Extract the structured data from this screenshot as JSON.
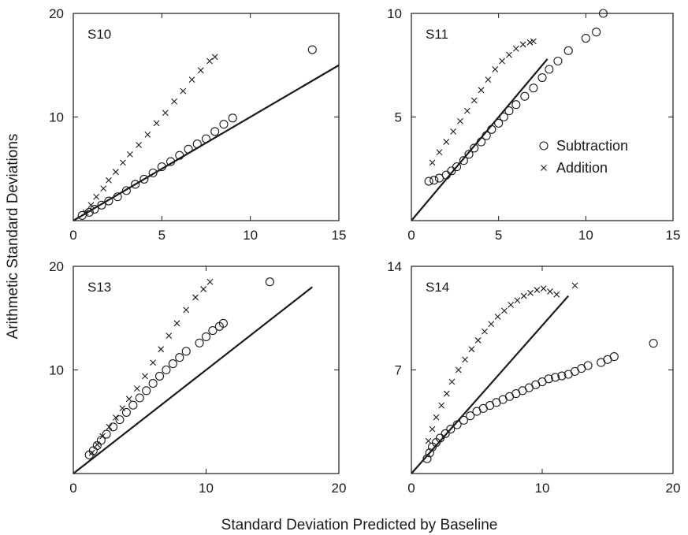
{
  "chart_data": {
    "type": "scatter",
    "xlabel": "Standard Deviation Predicted by Baseline",
    "ylabel": "Arithmetic Standard Deviations",
    "legend": {
      "placement": "inside panel S11, right",
      "series": [
        "Subtraction",
        "Addition"
      ]
    },
    "panels": [
      {
        "title": "S10",
        "xlim": [
          0,
          15
        ],
        "ylim": [
          0,
          20
        ],
        "xticks": [
          0,
          5,
          10,
          15
        ],
        "yticks": [
          0,
          10,
          20
        ],
        "xtick_labels": [
          "0",
          "5",
          "10",
          "15"
        ],
        "ytick_labels": [
          "0",
          "10",
          "20"
        ],
        "reference_line": [
          [
            0,
            0
          ],
          [
            15,
            15
          ]
        ],
        "series": [
          {
            "name": "Subtraction",
            "marker": "circle",
            "points": [
              [
                0.5,
                0.5
              ],
              [
                0.9,
                0.8
              ],
              [
                1.2,
                1.1
              ],
              [
                1.6,
                1.5
              ],
              [
                2.0,
                1.9
              ],
              [
                2.5,
                2.3
              ],
              [
                3.0,
                2.9
              ],
              [
                3.5,
                3.5
              ],
              [
                4.0,
                4.0
              ],
              [
                4.5,
                4.6
              ],
              [
                5.0,
                5.2
              ],
              [
                5.5,
                5.7
              ],
              [
                6.0,
                6.3
              ],
              [
                6.5,
                6.9
              ],
              [
                7.0,
                7.4
              ],
              [
                7.5,
                7.9
              ],
              [
                8.0,
                8.6
              ],
              [
                8.5,
                9.3
              ],
              [
                9.0,
                9.9
              ],
              [
                13.5,
                16.5
              ]
            ]
          },
          {
            "name": "Addition",
            "marker": "cross",
            "points": [
              [
                0.7,
                0.8
              ],
              [
                1.0,
                1.5
              ],
              [
                1.3,
                2.3
              ],
              [
                1.7,
                3.1
              ],
              [
                2.0,
                3.9
              ],
              [
                2.4,
                4.7
              ],
              [
                2.8,
                5.6
              ],
              [
                3.2,
                6.4
              ],
              [
                3.7,
                7.3
              ],
              [
                4.2,
                8.3
              ],
              [
                4.7,
                9.4
              ],
              [
                5.2,
                10.4
              ],
              [
                5.7,
                11.5
              ],
              [
                6.2,
                12.5
              ],
              [
                6.7,
                13.6
              ],
              [
                7.2,
                14.5
              ],
              [
                7.7,
                15.4
              ],
              [
                8.0,
                15.8
              ]
            ]
          }
        ]
      },
      {
        "title": "S11",
        "xlim": [
          0,
          15
        ],
        "ylim": [
          0,
          10
        ],
        "xticks": [
          0,
          5,
          10,
          15
        ],
        "yticks": [
          0,
          5,
          10
        ],
        "xtick_labels": [
          "0",
          "5",
          "10",
          "15"
        ],
        "ytick_labels": [
          "0",
          "5",
          "10"
        ],
        "reference_line": [
          [
            0,
            0
          ],
          [
            7.8,
            7.8
          ]
        ],
        "series": [
          {
            "name": "Subtraction",
            "marker": "circle",
            "points": [
              [
                1.0,
                1.9
              ],
              [
                1.3,
                1.95
              ],
              [
                1.6,
                2.05
              ],
              [
                2.0,
                2.2
              ],
              [
                2.3,
                2.4
              ],
              [
                2.6,
                2.6
              ],
              [
                3.0,
                2.9
              ],
              [
                3.3,
                3.2
              ],
              [
                3.6,
                3.5
              ],
              [
                4.0,
                3.8
              ],
              [
                4.3,
                4.1
              ],
              [
                4.6,
                4.4
              ],
              [
                5.0,
                4.7
              ],
              [
                5.3,
                5.0
              ],
              [
                5.6,
                5.3
              ],
              [
                6.0,
                5.6
              ],
              [
                6.5,
                6.0
              ],
              [
                7.0,
                6.4
              ],
              [
                7.5,
                6.9
              ],
              [
                7.9,
                7.3
              ],
              [
                8.4,
                7.7
              ],
              [
                9.0,
                8.2
              ],
              [
                10.0,
                8.8
              ],
              [
                10.6,
                9.1
              ],
              [
                11.0,
                10.0
              ]
            ]
          },
          {
            "name": "Addition",
            "marker": "cross",
            "points": [
              [
                1.2,
                2.8
              ],
              [
                1.6,
                3.3
              ],
              [
                2.0,
                3.8
              ],
              [
                2.4,
                4.3
              ],
              [
                2.8,
                4.8
              ],
              [
                3.2,
                5.3
              ],
              [
                3.6,
                5.8
              ],
              [
                4.0,
                6.3
              ],
              [
                4.4,
                6.8
              ],
              [
                4.8,
                7.3
              ],
              [
                5.2,
                7.7
              ],
              [
                5.6,
                8.0
              ],
              [
                6.0,
                8.3
              ],
              [
                6.4,
                8.5
              ],
              [
                6.8,
                8.6
              ],
              [
                7.0,
                8.65
              ]
            ]
          }
        ]
      },
      {
        "title": "S13",
        "xlim": [
          0,
          20
        ],
        "ylim": [
          0,
          20
        ],
        "xticks": [
          0,
          10,
          20
        ],
        "yticks": [
          0,
          10,
          20
        ],
        "xtick_labels": [
          "0",
          "10",
          "20"
        ],
        "ytick_labels": [
          "0",
          "10",
          "20"
        ],
        "reference_line": [
          [
            0,
            0
          ],
          [
            18,
            18
          ]
        ],
        "series": [
          {
            "name": "Subtraction",
            "marker": "circle",
            "points": [
              [
                1.2,
                1.8
              ],
              [
                1.5,
                2.2
              ],
              [
                1.8,
                2.7
              ],
              [
                2.1,
                3.2
              ],
              [
                2.5,
                3.8
              ],
              [
                3.0,
                4.5
              ],
              [
                3.5,
                5.2
              ],
              [
                4.0,
                5.9
              ],
              [
                4.5,
                6.6
              ],
              [
                5.0,
                7.3
              ],
              [
                5.5,
                8.0
              ],
              [
                6.0,
                8.7
              ],
              [
                6.5,
                9.4
              ],
              [
                7.0,
                10.0
              ],
              [
                7.5,
                10.6
              ],
              [
                8.0,
                11.2
              ],
              [
                8.5,
                11.8
              ],
              [
                9.5,
                12.6
              ],
              [
                10.0,
                13.2
              ],
              [
                10.5,
                13.8
              ],
              [
                11.0,
                14.2
              ],
              [
                11.3,
                14.5
              ],
              [
                14.8,
                18.5
              ]
            ]
          },
          {
            "name": "Addition",
            "marker": "cross",
            "points": [
              [
                1.4,
                2.0
              ],
              [
                1.8,
                2.8
              ],
              [
                2.2,
                3.6
              ],
              [
                2.7,
                4.5
              ],
              [
                3.2,
                5.4
              ],
              [
                3.7,
                6.3
              ],
              [
                4.2,
                7.2
              ],
              [
                4.8,
                8.2
              ],
              [
                5.4,
                9.4
              ],
              [
                6.0,
                10.7
              ],
              [
                6.6,
                12.0
              ],
              [
                7.2,
                13.3
              ],
              [
                7.8,
                14.5
              ],
              [
                8.5,
                15.8
              ],
              [
                9.2,
                17.0
              ],
              [
                9.8,
                17.8
              ],
              [
                10.3,
                18.5
              ]
            ]
          }
        ]
      },
      {
        "title": "S14",
        "xlim": [
          0,
          20
        ],
        "ylim": [
          0,
          14
        ],
        "xticks": [
          0,
          10,
          20
        ],
        "yticks": [
          0,
          7,
          14
        ],
        "xtick_labels": [
          "0",
          "10",
          "20"
        ],
        "ytick_labels": [
          "0",
          "7",
          "14"
        ],
        "reference_line": [
          [
            0,
            0
          ],
          [
            12,
            12
          ]
        ],
        "series": [
          {
            "name": "Subtraction",
            "marker": "circle",
            "points": [
              [
                1.2,
                1.0
              ],
              [
                1.4,
                1.4
              ],
              [
                1.6,
                1.8
              ],
              [
                1.9,
                2.1
              ],
              [
                2.2,
                2.4
              ],
              [
                2.6,
                2.7
              ],
              [
                3.0,
                3.0
              ],
              [
                3.5,
                3.3
              ],
              [
                4.0,
                3.6
              ],
              [
                4.5,
                3.9
              ],
              [
                5.0,
                4.2
              ],
              [
                5.5,
                4.4
              ],
              [
                6.0,
                4.6
              ],
              [
                6.5,
                4.8
              ],
              [
                7.0,
                5.0
              ],
              [
                7.5,
                5.2
              ],
              [
                8.0,
                5.4
              ],
              [
                8.5,
                5.6
              ],
              [
                9.0,
                5.8
              ],
              [
                9.5,
                6.0
              ],
              [
                10.0,
                6.2
              ],
              [
                10.5,
                6.4
              ],
              [
                11.0,
                6.5
              ],
              [
                11.5,
                6.6
              ],
              [
                12.0,
                6.7
              ],
              [
                12.5,
                6.9
              ],
              [
                13.0,
                7.1
              ],
              [
                13.5,
                7.3
              ],
              [
                14.5,
                7.5
              ],
              [
                15.0,
                7.7
              ],
              [
                15.5,
                7.9
              ],
              [
                18.5,
                8.8
              ]
            ]
          },
          {
            "name": "Addition",
            "marker": "cross",
            "points": [
              [
                1.3,
                2.2
              ],
              [
                1.6,
                3.0
              ],
              [
                1.9,
                3.8
              ],
              [
                2.3,
                4.6
              ],
              [
                2.7,
                5.4
              ],
              [
                3.1,
                6.2
              ],
              [
                3.6,
                7.0
              ],
              [
                4.1,
                7.7
              ],
              [
                4.6,
                8.4
              ],
              [
                5.1,
                9.0
              ],
              [
                5.6,
                9.6
              ],
              [
                6.1,
                10.1
              ],
              [
                6.6,
                10.6
              ],
              [
                7.1,
                11.0
              ],
              [
                7.6,
                11.4
              ],
              [
                8.1,
                11.7
              ],
              [
                8.6,
                12.0
              ],
              [
                9.1,
                12.2
              ],
              [
                9.6,
                12.4
              ],
              [
                10.1,
                12.5
              ],
              [
                10.6,
                12.3
              ],
              [
                11.1,
                12.1
              ],
              [
                12.5,
                12.7
              ]
            ]
          }
        ]
      }
    ]
  }
}
